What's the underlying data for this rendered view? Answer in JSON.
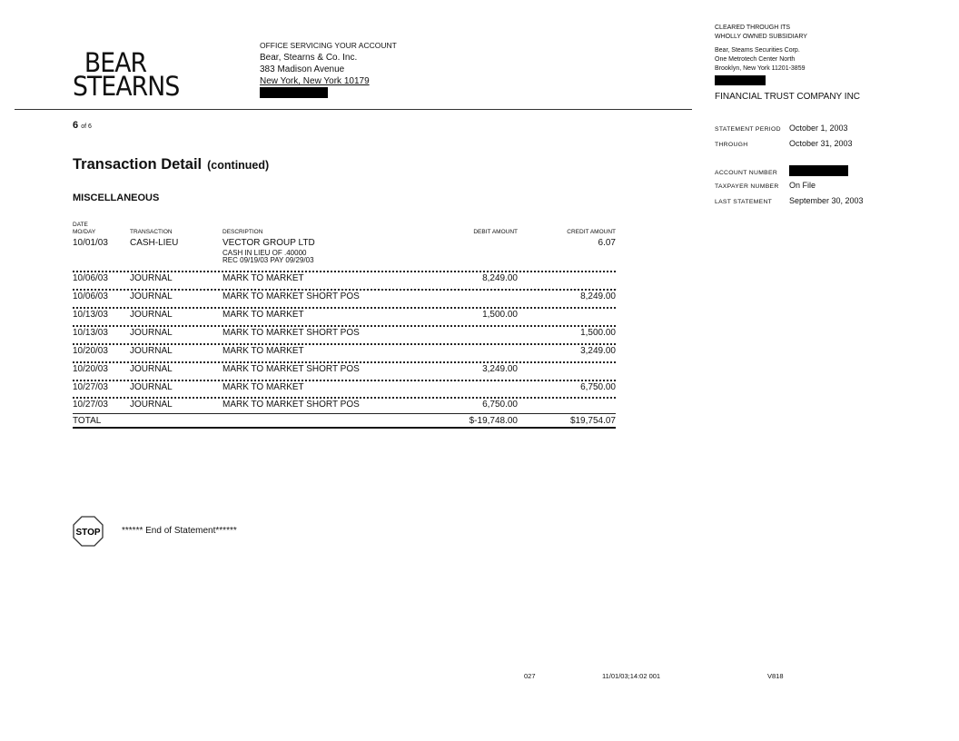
{
  "logo": {
    "line1": "BEAR",
    "line2": "STEARNS"
  },
  "office": {
    "header": "OFFICE SERVICING YOUR ACCOUNT",
    "name": "Bear, Stearns & Co. Inc.",
    "address1": "383 Madison Avenue",
    "address2": "New York, New York  10179"
  },
  "clearing": {
    "line1": "CLEARED  THROUGH  ITS",
    "line2": "WHOLLY  OWNED  SUBSIDIARY",
    "name": "Bear, Steams Securities  Corp.",
    "address1": "One Metrotech  Center North",
    "address2": "Brooklyn,  New York  11201-3859",
    "client": "FINANCIAL  TRUST COMPANY INC"
  },
  "statement": {
    "period_label": "STATEMENT  PERIOD",
    "period_value": "October  1, 2003",
    "through_label": "THROUGH",
    "through_value": "October  31, 2003",
    "account_label": "ACCOUNT  NUMBER",
    "taxpayer_label": "TAXPAYER  NUMBER",
    "taxpayer_value": "On File",
    "last_label": "LAST  STATEMENT",
    "last_value": "September  30, 2003"
  },
  "page": {
    "current": "6",
    "of_label": "of 6"
  },
  "title": "Transaction Detail",
  "title_suffix": "(continued)",
  "section": "MISCELLANEOUS",
  "table": {
    "headers": {
      "date_line1": "DATE",
      "date_line2": "MO/DAY",
      "transaction": "TRANSACTION",
      "description": "DESCRIPTION",
      "debit": "DEBIT AMOUNT",
      "credit": "CREDIT AMOUNT"
    },
    "rows": [
      {
        "date": "10/01/03",
        "transaction": "CASH-LIEU",
        "description": "VECTOR GROUP LTD",
        "detail1": "CASH IN LIEU OF .40000",
        "detail2": "REC 09/19/03 PAY 09/29/03",
        "debit": "",
        "credit": "6.07"
      },
      {
        "date": "10/06/03",
        "transaction": "JOURNAL",
        "description": "MARK TO MARKET",
        "debit": "8,249.00",
        "credit": ""
      },
      {
        "date": "10/06/03",
        "transaction": "JOURNAL",
        "description": "MARK TO MARKET  SHORT POS",
        "debit": "",
        "credit": "8,249.00"
      },
      {
        "date": "10/13/03",
        "transaction": "JOURNAL",
        "description": "MARK TO MARKET",
        "debit": "1,500.00",
        "credit": ""
      },
      {
        "date": "10/13/03",
        "transaction": "JOURNAL",
        "description": "MARK TO MARKET  SHORT POS",
        "debit": "",
        "credit": "1,500.00"
      },
      {
        "date": "10/20/03",
        "transaction": "JOURNAL",
        "description": "MARK TO MARKET",
        "debit": "",
        "credit": "3,249.00"
      },
      {
        "date": "10/20/03",
        "transaction": "JOURNAL",
        "description": "MARK TO MARKET  SHORT POS",
        "debit": "3,249.00",
        "credit": ""
      },
      {
        "date": "10/27/03",
        "transaction": "JOURNAL",
        "description": "MARK TO MARKET",
        "debit": "",
        "credit": "6,750.00"
      },
      {
        "date": "10/27/03",
        "transaction": "JOURNAL",
        "description": "MARK TO MARKET  SHORT POS",
        "debit": "6,750.00",
        "credit": ""
      }
    ],
    "total": {
      "label": "TOTAL",
      "debit": "$-19,748.00",
      "credit": "$19,754.07"
    }
  },
  "end": {
    "stop_label": "STOP",
    "text": "******  End of Statement******"
  },
  "footer": {
    "code1": "027",
    "timestamp": "11/01/03;14:02  001",
    "code2": "V818"
  }
}
